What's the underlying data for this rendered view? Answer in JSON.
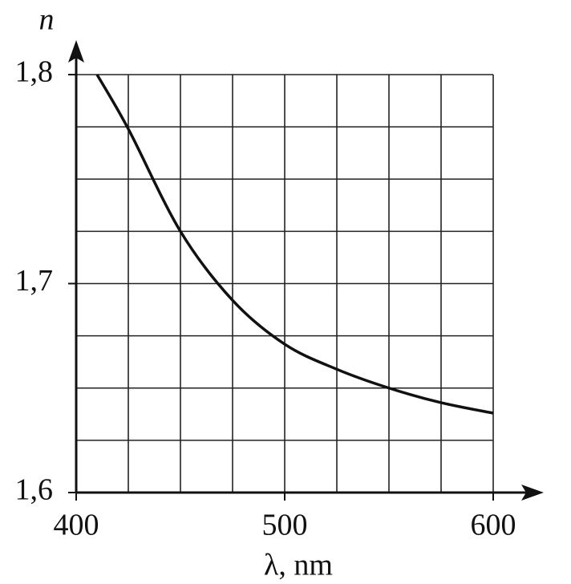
{
  "chart_data": {
    "type": "line",
    "y_axis_label": "n",
    "x_axis_label": "λ, nm",
    "x": [
      410,
      425,
      450,
      475,
      500,
      525,
      550,
      575,
      600
    ],
    "series": [
      {
        "color": "#111111",
        "values": [
          1.8,
          1.774,
          1.725,
          1.692,
          1.671,
          1.659,
          1.65,
          1.643,
          1.638
        ]
      }
    ],
    "xlim": [
      400,
      600
    ],
    "ylim": [
      1.6,
      1.8
    ],
    "xticks": [
      400,
      500,
      600
    ],
    "yticks": [
      {
        "value": 1.6,
        "label": "1,6"
      },
      {
        "value": 1.7,
        "label": "1,7"
      },
      {
        "value": 1.8,
        "label": "1,8"
      }
    ],
    "x_grid_lines": [
      425,
      450,
      475,
      500,
      525,
      550,
      575,
      600
    ],
    "y_grid_lines": [
      1.625,
      1.65,
      1.675,
      1.7,
      1.725,
      1.75,
      1.775,
      1.8
    ],
    "grid": true
  }
}
